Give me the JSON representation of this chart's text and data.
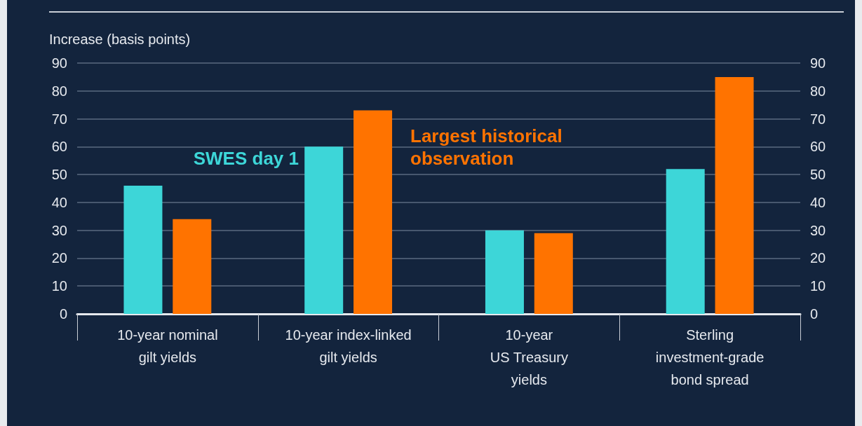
{
  "chart_data": {
    "type": "bar",
    "ylabel": "Increase (basis points)",
    "categories": [
      "10-year nominal\ngilt yields",
      "10-year index-linked\ngilt yields",
      "10-year\nUS Treasury\nyields",
      "Sterling\ninvestment-grade\nbond spread"
    ],
    "series": [
      {
        "name": "SWES day 1",
        "color": "#3dd6d8",
        "values": [
          46,
          60,
          30,
          52
        ]
      },
      {
        "name": "Largest historical\nobservation",
        "color": "#ff7300",
        "values": [
          34,
          73,
          29,
          85
        ]
      }
    ],
    "ylim": [
      0,
      90
    ],
    "yticks": [
      0,
      10,
      20,
      30,
      40,
      50,
      60,
      70,
      80,
      90
    ],
    "y2lim": [
      0,
      90
    ],
    "y2ticks": [
      0,
      10,
      20,
      30,
      40,
      50,
      60,
      70,
      80,
      90
    ],
    "grid": "y",
    "legend": false
  }
}
